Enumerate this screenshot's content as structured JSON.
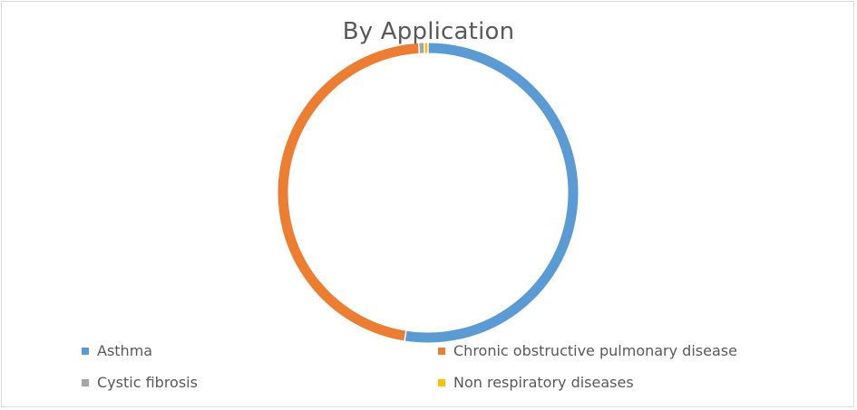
{
  "chart_data": {
    "type": "pie",
    "variant": "donut",
    "title": "By Application",
    "categories": [
      "Asthma",
      "Chronic obstructive pulmonary disease",
      "Cystic fibrosis",
      "Non respiratory diseases"
    ],
    "values": [
      52.5,
      46.5,
      0.6,
      0.4
    ],
    "colors": [
      "#5b9bd5",
      "#ed7d31",
      "#a5a5a5",
      "#ffc000"
    ],
    "legend_position": "bottom"
  }
}
